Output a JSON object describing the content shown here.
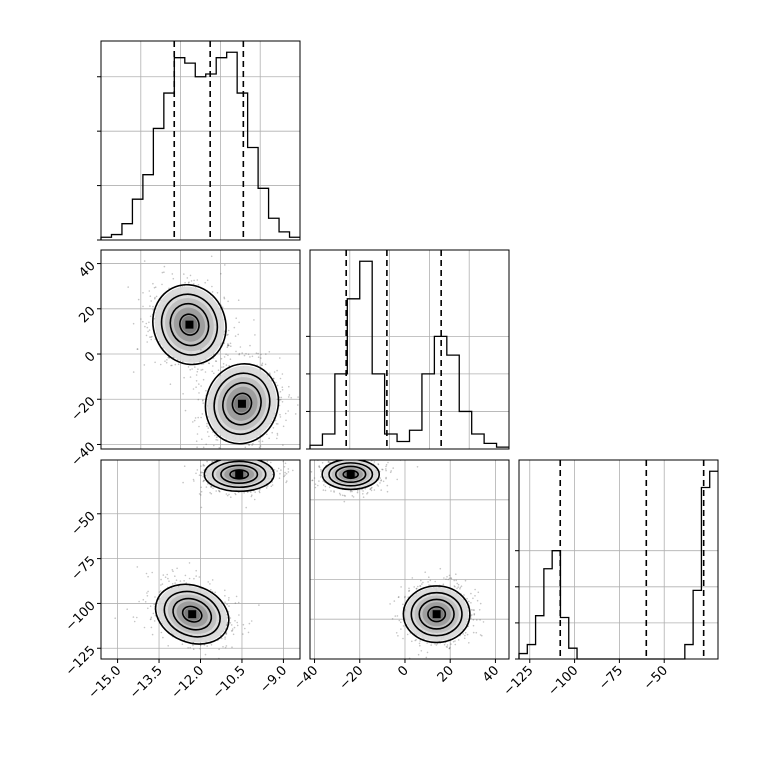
{
  "chart_data": {
    "type": "corner",
    "parameters": [
      {
        "range": [
          -15.6,
          -8.4
        ]
      },
      {
        "range": [
          -42,
          46
        ]
      },
      {
        "range": [
          -131,
          -20
        ]
      }
    ],
    "diag_hist": [
      {
        "param": 0,
        "counts": [
          1,
          2,
          6,
          15,
          24,
          41,
          54,
          67,
          65,
          60,
          61,
          67,
          69,
          54,
          34,
          19,
          8,
          3,
          1
        ],
        "quantiles": [
          -12.95,
          -11.65,
          -10.45
        ],
        "xticks": [],
        "yticks": [
          0,
          20,
          40,
          60
        ]
      },
      {
        "param": 1,
        "counts": [
          2,
          8,
          40,
          80,
          100,
          40,
          8,
          4,
          10,
          40,
          60,
          50,
          20,
          8,
          3,
          1
        ],
        "quantiles": [
          -26,
          -8,
          16
        ],
        "xticks": [],
        "yticks": [
          0,
          20,
          40,
          60
        ]
      },
      {
        "param": 2,
        "counts": [
          3,
          8,
          24,
          50,
          60,
          23,
          6,
          0,
          0,
          0,
          0,
          0,
          0,
          0,
          0,
          0,
          0,
          0,
          0,
          0,
          8,
          38,
          95,
          104
        ],
        "quantiles": [
          -108,
          -60,
          -28
        ],
        "xticks": [
          {
            "value": -125,
            "label": "−125"
          },
          {
            "value": -100,
            "label": "−100"
          },
          {
            "value": -75,
            "label": "−75"
          },
          {
            "value": -50,
            "label": "−50"
          }
        ],
        "yticks": [
          0,
          20,
          40,
          60
        ]
      }
    ],
    "offdiag": [
      {
        "row": 1,
        "col": 0,
        "clusters": [
          {
            "cx": -12.4,
            "cy": 13,
            "sx": 0.62,
            "sy": 8.5,
            "rot": -20,
            "angle": 0
          },
          {
            "cx": -10.5,
            "cy": -22,
            "sx": 0.62,
            "sy": 8.5,
            "rot": 18,
            "angle": 0
          }
        ],
        "peak": {
          "x": -12.2,
          "y": 13,
          "w": 0.2,
          "h": 3
        },
        "peak2": {
          "x": -10.4,
          "y": -23,
          "w": 0.4,
          "h": 2
        },
        "yticks": [
          {
            "value": 40,
            "label": "40"
          },
          {
            "value": 20,
            "label": "20"
          },
          {
            "value": 0,
            "label": "0"
          },
          {
            "value": -20,
            "label": "−20"
          },
          {
            "value": -40,
            "label": "−40"
          }
        ]
      },
      {
        "row": 2,
        "col": 0,
        "clusters": [
          {
            "cx": -12.3,
            "cy": -106,
            "sx": 0.65,
            "sy": 7.5,
            "rot": 22,
            "angle": 0
          },
          {
            "cx": -10.6,
            "cy": -28,
            "sx": 0.6,
            "sy": 4.5,
            "rot": 0,
            "angle": 0
          }
        ],
        "yticks": [
          {
            "value": -50,
            "label": "−50"
          },
          {
            "value": -75,
            "label": "−75"
          },
          {
            "value": -100,
            "label": "−100"
          },
          {
            "value": -125,
            "label": "−125"
          }
        ],
        "xticks": [
          {
            "value": -15.0,
            "label": "−15.0"
          },
          {
            "value": -13.5,
            "label": "−13.5"
          },
          {
            "value": -12.0,
            "label": "−12.0"
          },
          {
            "value": -10.5,
            "label": "−10.5"
          },
          {
            "value": -9.0,
            "label": "−9.0"
          }
        ]
      },
      {
        "row": 2,
        "col": 1,
        "clusters": [
          {
            "cx": -24,
            "cy": -28,
            "sx": 6,
            "sy": 4,
            "rot": 0,
            "angle": 0
          },
          {
            "cx": 14,
            "cy": -106,
            "sx": 7,
            "sy": 7.5,
            "rot": 0,
            "angle": 0
          }
        ],
        "xticks": [
          {
            "value": -40,
            "label": "−40"
          },
          {
            "value": -20,
            "label": "−20"
          },
          {
            "value": 0,
            "label": "0"
          },
          {
            "value": 20,
            "label": "20"
          },
          {
            "value": 40,
            "label": "40"
          }
        ]
      }
    ],
    "colors": {
      "line": "#000000",
      "grid": "#b0b0b0",
      "points": "#555555"
    }
  }
}
